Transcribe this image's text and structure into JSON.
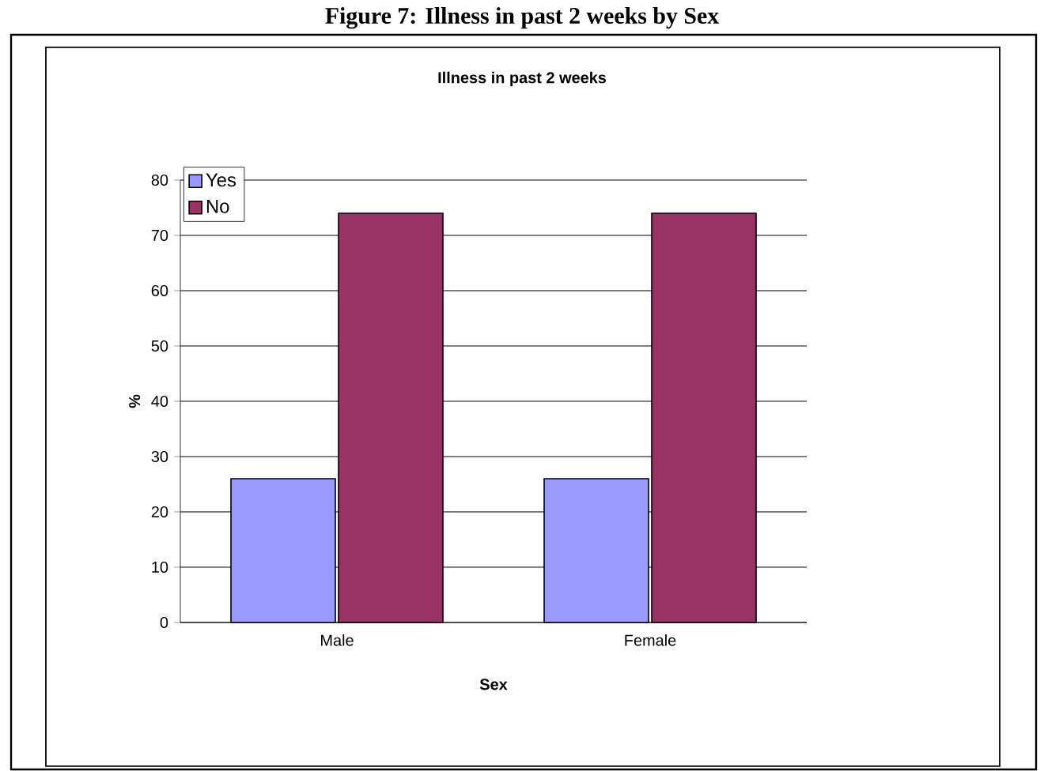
{
  "chart_data": {
    "type": "bar",
    "title": "Illness in past 2 weeks",
    "xlabel": "Sex",
    "ylabel": "%",
    "categories": [
      "Male",
      "Female"
    ],
    "series": [
      {
        "name": "Yes",
        "color": "#9999ff",
        "values": [
          26,
          26
        ]
      },
      {
        "name": "No",
        "color": "#993366",
        "values": [
          74,
          74
        ]
      }
    ],
    "ylim": [
      0,
      80
    ],
    "yticks": [
      0,
      10,
      20,
      30,
      40,
      50,
      60,
      70,
      80
    ],
    "grid": "y",
    "legend": "top left",
    "annotations": [
      "Figure 7: Illness in past 2 weeks by Sex"
    ]
  }
}
